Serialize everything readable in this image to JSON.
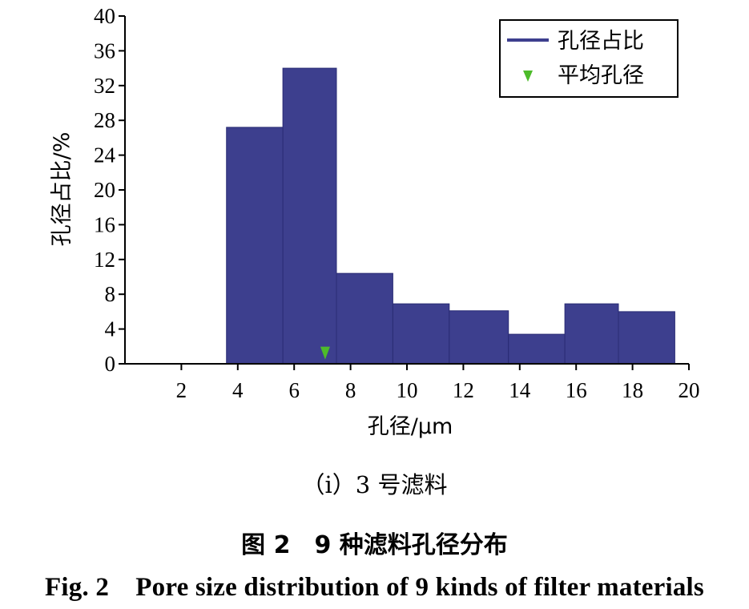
{
  "chart_data": {
    "type": "bar",
    "bin_edges": [
      3.6,
      5.6,
      7.5,
      9.5,
      11.5,
      13.6,
      15.6,
      17.5,
      19.5
    ],
    "values": [
      27.2,
      34.0,
      10.4,
      6.9,
      6.1,
      3.4,
      6.9,
      6.0
    ],
    "xlim": [
      0,
      20
    ],
    "ylim": [
      0,
      40
    ],
    "xticks": [
      2,
      4,
      6,
      8,
      10,
      12,
      14,
      16,
      18,
      20
    ],
    "yticks": [
      0,
      4,
      8,
      12,
      16,
      20,
      24,
      28,
      32,
      36,
      40
    ],
    "xlabel": "孔径/μm",
    "ylabel": "孔径占比/%",
    "legend_placement": "top-right",
    "series": [
      {
        "name": "孔径占比",
        "color": "#3d3f8e"
      }
    ],
    "marker": {
      "name": "平均孔径",
      "x": 7.1,
      "y": 0.5,
      "color": "#4dbb2a"
    }
  },
  "captions": {
    "subfigure": "（i）3 号滤料",
    "figure_cn": "图 2　9 种滤料孔径分布",
    "figure_en": "Fig. 2　Pore size distribution of 9 kinds of filter materials"
  }
}
